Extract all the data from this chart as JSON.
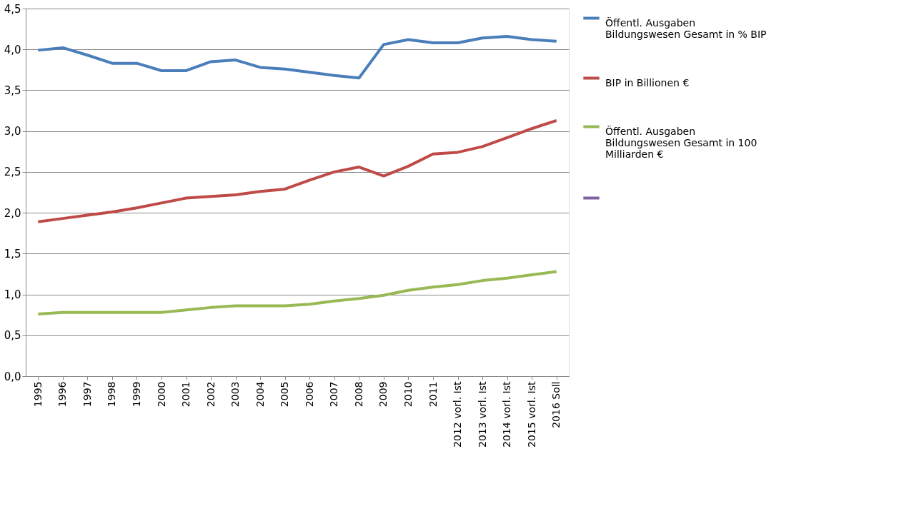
{
  "chart_data": {
    "type": "line",
    "categories": [
      "1995",
      "1996",
      "1997",
      "1998",
      "1999",
      "2000",
      "2001",
      "2002",
      "2003",
      "2004",
      "2005",
      "2006",
      "2007",
      "2008",
      "2009",
      "2010",
      "2011",
      "2012 vorl. Ist",
      "2013 vorl. Ist",
      "2014 vorl. Ist",
      "2015 vorl. Ist",
      "2016 Soll"
    ],
    "series": [
      {
        "name": "Öffentl. Ausgaben Bildungswesen Gesamt in % BIP",
        "color": "#4a7ebb",
        "values": [
          3.99,
          4.02,
          3.93,
          3.83,
          3.83,
          3.74,
          3.74,
          3.85,
          3.87,
          3.78,
          3.76,
          3.72,
          3.68,
          3.65,
          4.06,
          4.12,
          4.08,
          4.08,
          4.14,
          4.16,
          4.12,
          4.1
        ]
      },
      {
        "name": "BIP in Billionen €",
        "color": "#be4b48",
        "values": [
          1.89,
          1.93,
          1.97,
          2.01,
          2.06,
          2.12,
          2.18,
          2.2,
          2.22,
          2.26,
          2.29,
          2.4,
          2.5,
          2.56,
          2.45,
          2.57,
          2.72,
          2.74,
          2.81,
          2.92,
          3.03,
          3.13
        ]
      },
      {
        "name": "Öffentl. Ausgaben Bildungswesen Gesamt in 100 Milliarden €",
        "color": "#98b954",
        "values": [
          0.76,
          0.78,
          0.78,
          0.78,
          0.78,
          0.78,
          0.81,
          0.84,
          0.86,
          0.86,
          0.86,
          0.88,
          0.92,
          0.95,
          0.99,
          1.05,
          1.09,
          1.12,
          1.17,
          1.2,
          1.24,
          1.28
        ]
      },
      {
        "color": "#7d60a0",
        "values": [
          null,
          null,
          null,
          null,
          null,
          null,
          null,
          null,
          null,
          null,
          null,
          null,
          null,
          null,
          null,
          null,
          null,
          null,
          null,
          null,
          null,
          null
        ]
      }
    ],
    "ylim": [
      0,
      4.5
    ],
    "yticks": [
      {
        "value": 0,
        "label": "0,0"
      },
      {
        "value": 0.5,
        "label": "0,5"
      },
      {
        "value": 1,
        "label": "1,0"
      },
      {
        "value": 1.5,
        "label": "1,5"
      },
      {
        "value": 2,
        "label": "2,0"
      },
      {
        "value": 2.5,
        "label": "2,5"
      },
      {
        "value": 3,
        "label": "3,0"
      },
      {
        "value": 3.5,
        "label": "3,5"
      },
      {
        "value": 4,
        "label": "4,0"
      },
      {
        "value": 4.5,
        "label": "4,5"
      }
    ],
    "grid": "y",
    "legend": "right",
    "marker": "none",
    "line_style": "solid"
  }
}
